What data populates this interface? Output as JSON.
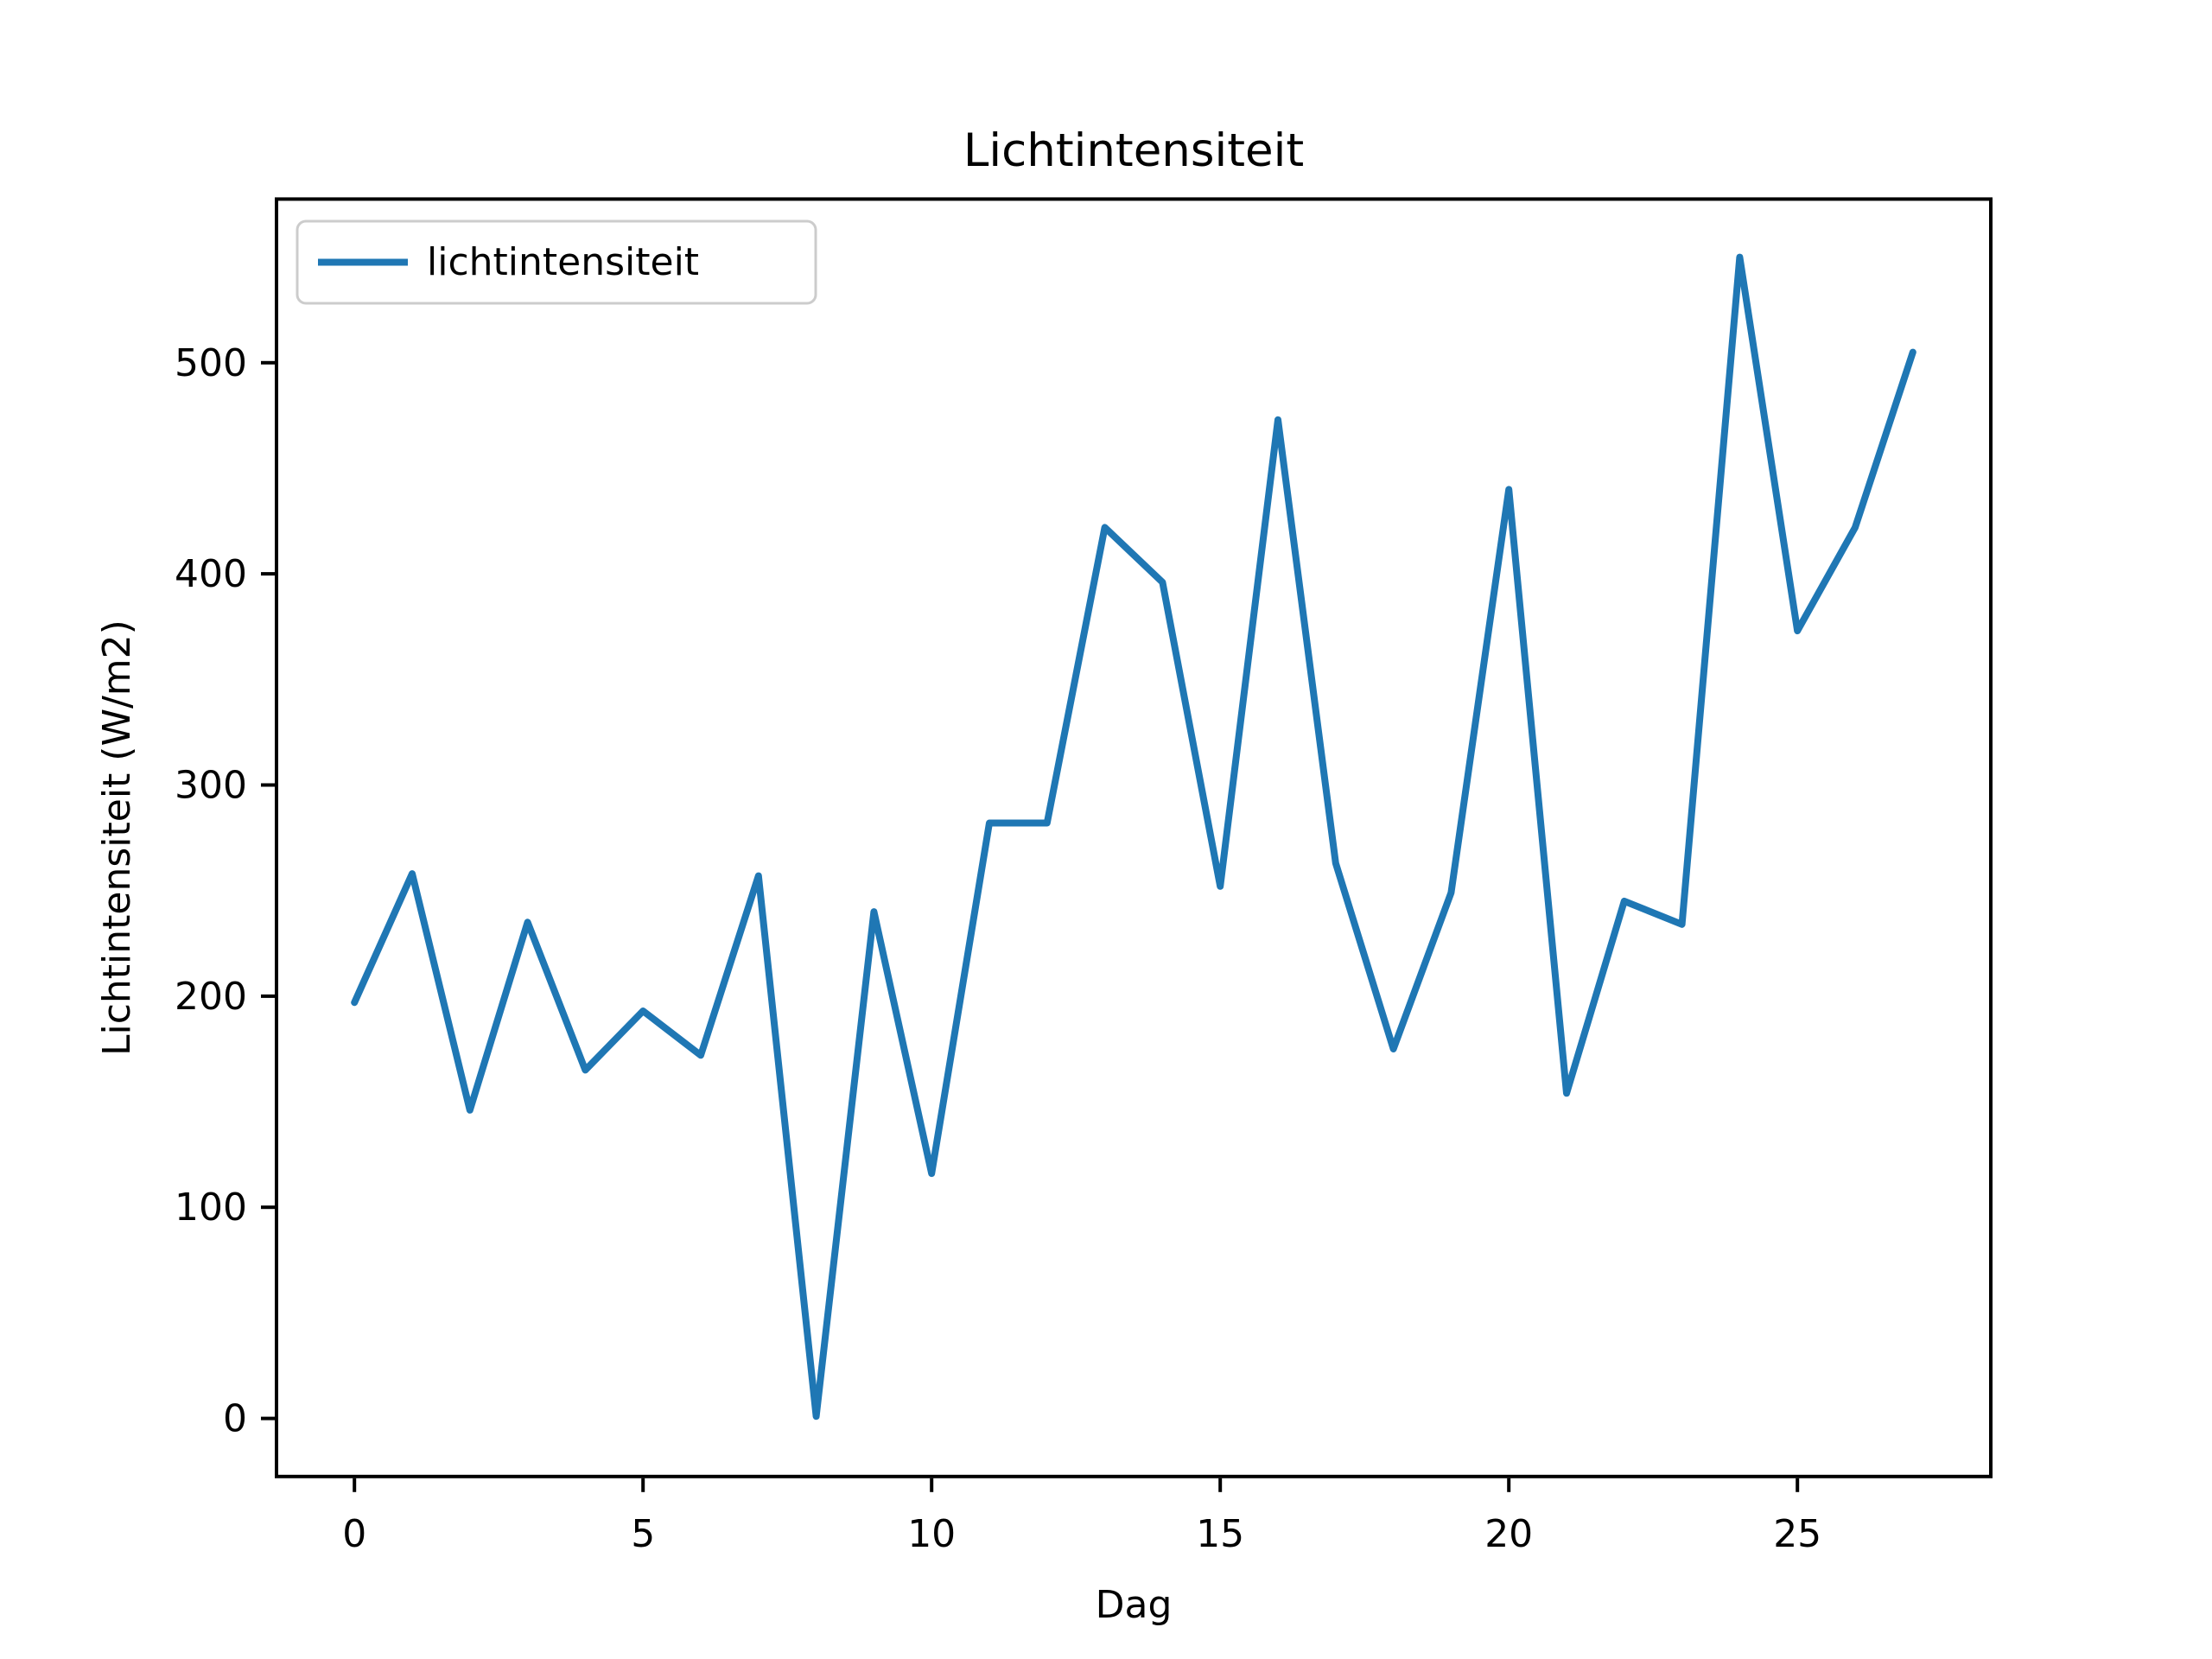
{
  "chart_data": {
    "type": "line",
    "title": "Lichtintensiteit",
    "xlabel": "Dag",
    "ylabel": "Lichtintensiteit (W/m2)",
    "legend": {
      "label": "lichtintensiteit",
      "position": "upper-left"
    },
    "x": [
      0,
      1,
      2,
      3,
      4,
      5,
      6,
      7,
      8,
      9,
      10,
      11,
      12,
      13,
      14,
      15,
      16,
      17,
      18,
      19,
      20,
      21,
      22,
      23,
      24,
      25,
      26,
      27
    ],
    "series": [
      {
        "name": "lichtintensiteit",
        "color": "#1f77b4",
        "values": [
          197,
          258,
          146,
          235,
          165,
          193,
          172,
          257,
          1,
          240,
          116,
          282,
          282,
          422,
          396,
          252,
          473,
          263,
          175,
          249,
          440,
          154,
          245,
          234,
          550,
          373,
          422,
          505
        ]
      }
    ],
    "xlim": [
      -1.35,
      28.35
    ],
    "ylim": [
      -27.5,
      577.5
    ],
    "xticks": [
      0,
      5,
      10,
      15,
      20,
      25
    ],
    "yticks": [
      0,
      100,
      200,
      300,
      400,
      500
    ],
    "grid": false,
    "axis_color": "#000000",
    "legend_border_color": "#cccccc",
    "background_color": "#ffffff"
  }
}
